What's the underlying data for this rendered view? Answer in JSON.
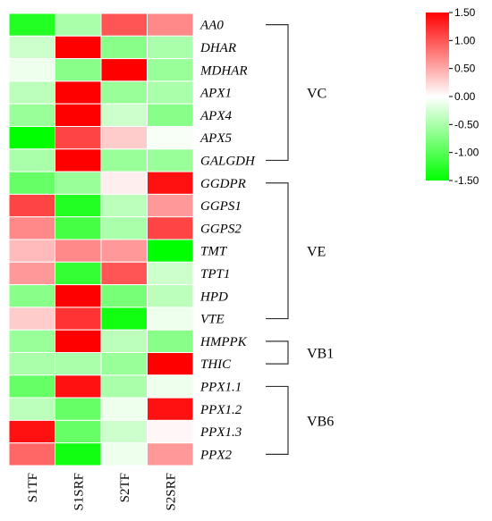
{
  "chart_data": {
    "type": "heatmap",
    "columns": [
      "S1TF",
      "S1SRF",
      "S2TF",
      "S2SRF"
    ],
    "rows": [
      "AA0",
      "DHAR",
      "MDHAR",
      "APX1",
      "APX4",
      "APX5",
      "GALGDH",
      "GGDPR",
      "GGPS1",
      "GGPS2",
      "TMT",
      "TPT1",
      "HPD",
      "VTE",
      "HMPPK",
      "THIC",
      "PPX1.1",
      "PPX1.2",
      "PPX1.3",
      "PPX2"
    ],
    "values": [
      [
        -1.3,
        -0.5,
        1.0,
        0.7
      ],
      [
        -0.3,
        1.5,
        -0.7,
        -0.5
      ],
      [
        -0.1,
        -0.7,
        1.5,
        -0.6
      ],
      [
        -0.4,
        1.5,
        -0.6,
        -0.5
      ],
      [
        -0.6,
        1.5,
        -0.3,
        -0.7
      ],
      [
        -1.5,
        1.1,
        0.3,
        -0.05
      ],
      [
        -0.5,
        1.5,
        -0.6,
        -0.6
      ],
      [
        -0.9,
        -0.6,
        0.1,
        1.4
      ],
      [
        1.1,
        -1.3,
        -0.4,
        0.6
      ],
      [
        0.7,
        -1.1,
        -0.5,
        1.1
      ],
      [
        0.4,
        0.7,
        0.6,
        -1.5
      ],
      [
        0.6,
        -1.2,
        1.0,
        -0.3
      ],
      [
        -0.7,
        1.5,
        -0.8,
        -0.4
      ],
      [
        0.3,
        1.2,
        -1.4,
        -0.1
      ],
      [
        -0.6,
        1.5,
        -0.4,
        -0.7
      ],
      [
        -0.5,
        -0.5,
        -0.6,
        1.5
      ],
      [
        -0.9,
        1.4,
        -0.5,
        -0.1
      ],
      [
        -0.4,
        -0.9,
        -0.1,
        1.4
      ],
      [
        1.4,
        -0.9,
        -0.3,
        0.05
      ],
      [
        0.9,
        -1.4,
        -0.1,
        0.6
      ]
    ],
    "color_scale": {
      "min": -1.5,
      "max": 1.5,
      "low_color": "#00ff00",
      "mid_color": "#ffffff",
      "high_color": "#ff0000",
      "ticks": [
        "1.50",
        "1.00",
        "0.50",
        "0.00",
        "-0.50",
        "-1.00",
        "-1.50"
      ]
    },
    "groups": [
      {
        "label": "VC",
        "start": 0,
        "end": 6
      },
      {
        "label": "VE",
        "start": 7,
        "end": 13
      },
      {
        "label": "VB1",
        "start": 14,
        "end": 15
      },
      {
        "label": "VB6",
        "start": 16,
        "end": 19
      }
    ]
  }
}
